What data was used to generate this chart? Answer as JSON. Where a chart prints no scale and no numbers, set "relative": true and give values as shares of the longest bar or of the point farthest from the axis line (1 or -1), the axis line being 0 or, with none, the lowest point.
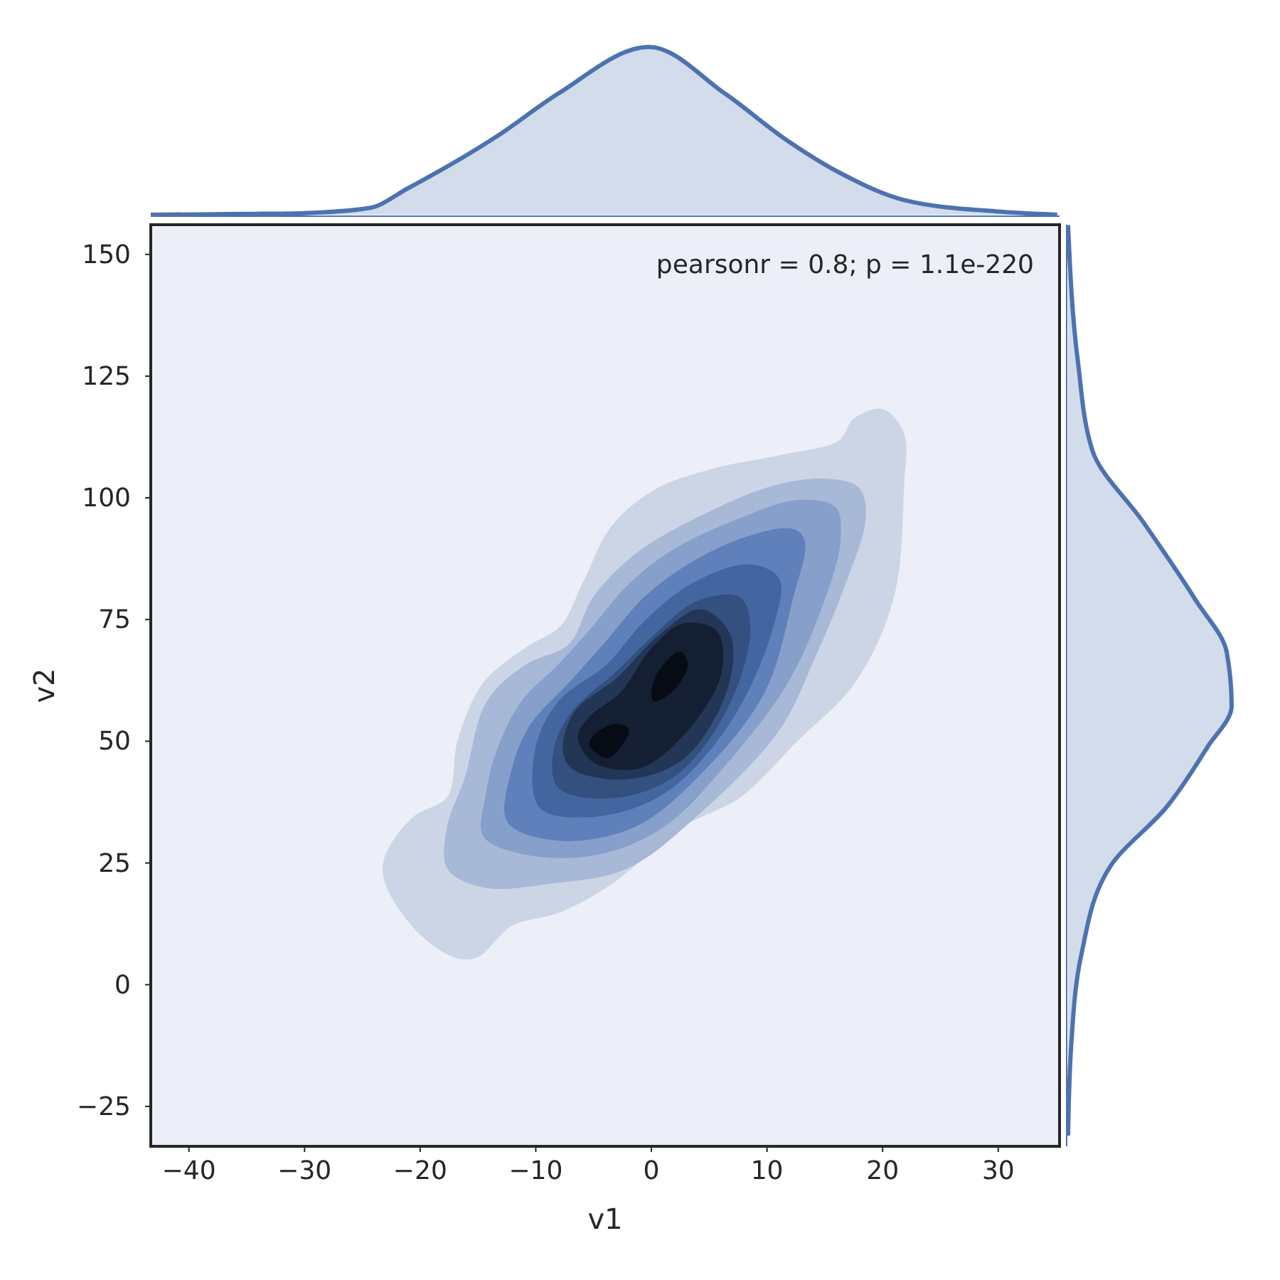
{
  "chart_data": [
    {
      "type": "area",
      "relative": true,
      "xlim": [
        -43.3,
        35.3
      ],
      "color": "#4c72b0",
      "x": [
        -43.3,
        -35,
        -30,
        -24.4,
        -21,
        -13.3,
        -8.1,
        -0.2,
        6.4,
        11.8,
        16.3,
        22,
        29.8,
        35.1
      ],
      "values": [
        0,
        0.005,
        0.01,
        0.04,
        0.16,
        0.47,
        0.72,
        1,
        0.72,
        0.44,
        0.25,
        0.085,
        0.02,
        0
      ]
    },
    {
      "type": "area",
      "xlabel": "v1",
      "ylabel": "v2",
      "grid": false,
      "xlim": [
        -43.3,
        35.3
      ],
      "ylim": [
        -33.2,
        156.1
      ],
      "xticks": [
        -40,
        -30,
        -20,
        -10,
        0,
        10,
        20,
        30
      ],
      "yticks": [
        -25,
        0,
        25,
        50,
        75,
        100,
        125,
        150
      ],
      "annotations": [
        "pearsonr = 0.8; p = 1.1e-220"
      ],
      "series": [
        {
          "color": "#cbd5e6",
          "x": [
            -23.2,
            -20.7,
            -17.0,
            -15.1,
            -12.1,
            -7.8,
            -3.4,
            2.7,
            7.6,
            12.6,
            17.5,
            20.9,
            21.8,
            21.8,
            20.0,
            17.5,
            16.3,
            11.3,
            5.2,
            0.2,
            -3.4,
            -5.9,
            -7.8,
            -10.8,
            -14.5,
            -16.7,
            -17.6,
            -20.7
          ],
          "values": [
            23.9,
            12.2,
            5.7,
            5.7,
            12.2,
            15.1,
            20.9,
            32.6,
            38.5,
            50.2,
            61.9,
            79.5,
            102.9,
            113.1,
            118.1,
            116.1,
            111.7,
            108.7,
            105.8,
            101.4,
            94.1,
            82.4,
            73.6,
            69.2,
            61.9,
            50.2,
            38.5,
            34.1
          ]
        },
        {
          "color": "#a8b8d7",
          "x": [
            -17.6,
            -14.5,
            -8.7,
            -2.2,
            4.3,
            11.0,
            14.2,
            16.6,
            18.5,
            17.9,
            15.0,
            10.5,
            4.3,
            -1.4,
            -5.0,
            -7.1,
            -10.8,
            -14.2,
            -16.1,
            -17.6
          ],
          "values": [
            23.9,
            20.1,
            20.9,
            23.9,
            35.6,
            52.3,
            67.8,
            81.5,
            96.2,
            102.0,
            103.8,
            102.3,
            96.2,
            88.3,
            79.5,
            69.8,
            65.7,
            58.1,
            42.3,
            32.6
          ]
        },
        {
          "color": "#86a0cb",
          "x": [
            -14.5,
            -10.8,
            -4.7,
            1.1,
            6.8,
            11.7,
            15.0,
            16.3,
            15.9,
            12.6,
            7.6,
            1.8,
            -2.2,
            -5.0,
            -8.0,
            -11.2,
            -13.3,
            -14.3
          ],
          "values": [
            30.6,
            26.8,
            26.8,
            32.6,
            46.4,
            61.9,
            79.5,
            91.2,
            97.9,
            99.4,
            95.6,
            89.1,
            81.5,
            73.6,
            65.7,
            58.1,
            48.2,
            38.5
          ]
        },
        {
          "color": "#5f80ba",
          "x": [
            -12.4,
            -8.0,
            -1.4,
            4.3,
            9.7,
            12.2,
            13.2,
            12.2,
            8.5,
            3.6,
            -0.6,
            -3.8,
            -7.1,
            -10.5,
            -12.1
          ],
          "values": [
            33.5,
            29.7,
            32.6,
            43.5,
            59.9,
            79.5,
            91.2,
            93.5,
            92.1,
            86.8,
            79.5,
            70.7,
            61.9,
            53.1,
            43.5
          ]
        },
        {
          "color": "#4466a0",
          "x": [
            -9.6,
            -4.7,
            1.1,
            6.8,
            10.5,
            11.0,
            8.5,
            3.6,
            -0.6,
            -3.8,
            -8.0,
            -10.0
          ],
          "values": [
            36.4,
            34.7,
            39.4,
            54.0,
            73.6,
            83.3,
            86.2,
            82.4,
            74.5,
            65.7,
            58.1,
            48.2
          ]
        },
        {
          "color": "#34507e",
          "x": [
            -8.0,
            -3.1,
            2.3,
            6.8,
            8.5,
            7.6,
            3.9,
            0.2,
            -3.1,
            -6.8,
            -8.4
          ],
          "values": [
            40.5,
            38.5,
            43.5,
            58.1,
            73.6,
            79.5,
            78.6,
            71.6,
            64.0,
            56.1,
            48.2
          ]
        },
        {
          "color": "#243656",
          "x": [
            -6.8,
            -2.2,
            2.7,
            6.4,
            6.8,
            4.3,
            0.6,
            -2.9,
            -6.6,
            -7.6
          ],
          "values": [
            44.4,
            42.3,
            46.4,
            59.9,
            71.6,
            77.0,
            71.5,
            63.0,
            56.0,
            48.2
          ]
        },
        {
          "color": "#151f33",
          "x": [
            -5.0,
            -1.0,
            3.1,
            6.0,
            5.6,
            2.7,
            -0.1,
            -2.6,
            -5.3,
            -6.3
          ],
          "values": [
            45.8,
            44.6,
            52.3,
            64.0,
            72.6,
            74.0,
            68.6,
            60.0,
            55.0,
            51.0
          ]
        },
        {
          "color": "#070b14",
          "x": [
            -5.3,
            -3.8,
            -2.0,
            -3.1,
            -5.0
          ],
          "values": [
            49.3,
            46.7,
            52.3,
            53.4,
            51.1
          ]
        },
        {
          "color": "#070b14",
          "x": [
            0.2,
            1.8,
            3.1,
            2.5,
            1.1,
            0.2
          ],
          "values": [
            58.4,
            60.4,
            65.7,
            68.3,
            65.7,
            61.9
          ]
        }
      ]
    },
    {
      "type": "area",
      "relative": true,
      "orientation": "horizontal",
      "ylim": [
        -33.2,
        156.1
      ],
      "color": "#4c72b0",
      "x": [
        -31,
        -12,
        6,
        24.4,
        36.4,
        48.7,
        57.2,
        68.3,
        79,
        95,
        109.6,
        128,
        156
      ],
      "values": [
        0,
        0.02,
        0.08,
        0.26,
        0.6,
        0.85,
        1,
        0.97,
        0.78,
        0.46,
        0.15,
        0.06,
        0
      ]
    }
  ]
}
